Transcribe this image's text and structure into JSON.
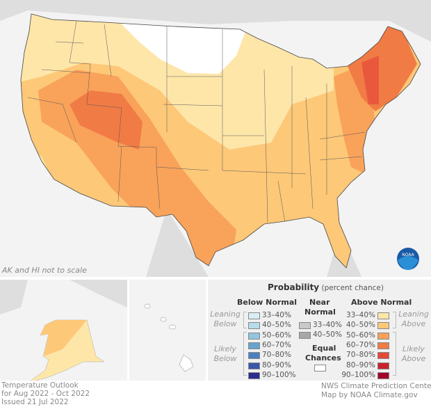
{
  "map": {
    "title": "Temperature Outlook",
    "period": "for Aug 2022 - Oct 2022",
    "issued": "Issued 21 Jul 2022",
    "scale_note": "AK and HI not to scale",
    "logo": "NOAA",
    "credit_1": "NWS Climate Prediction Center",
    "credit_2": "Map by NOAA Climate.gov"
  },
  "legend": {
    "title": "Probability",
    "title_sub": "(percent chance)",
    "below": {
      "header": "Below Normal",
      "leaning": "Leaning Below",
      "likely": "Likely Below",
      "items": [
        {
          "label": "33–40%",
          "color": "#d9eff6"
        },
        {
          "label": "40–50%",
          "color": "#b4dcea"
        },
        {
          "label": "50–60%",
          "color": "#92c5df"
        },
        {
          "label": "60–70%",
          "color": "#67a4cd"
        },
        {
          "label": "70–80%",
          "color": "#4b7fbf"
        },
        {
          "label": "80–90%",
          "color": "#3a57a6"
        },
        {
          "label": "90–100%",
          "color": "#2c2e8e"
        }
      ]
    },
    "near": {
      "header_1": "Near",
      "header_2": "Normal",
      "items": [
        {
          "label": "33–40%",
          "color": "#c9c9c9"
        },
        {
          "label": "40–50%",
          "color": "#a7a7a7"
        }
      ]
    },
    "equal": {
      "label_1": "Equal",
      "label_2": "Chances",
      "color": "#ffffff"
    },
    "above": {
      "header": "Above Normal",
      "leaning": "Leaning Above",
      "likely": "Likely Above",
      "items": [
        {
          "label": "33–40%",
          "color": "#fee6a9"
        },
        {
          "label": "40–50%",
          "color": "#fdc878"
        },
        {
          "label": "50–60%",
          "color": "#f9a25a"
        },
        {
          "label": "60–70%",
          "color": "#f17b45"
        },
        {
          "label": "70–80%",
          "color": "#e34a38"
        },
        {
          "label": "80–90%",
          "color": "#c8232a"
        },
        {
          "label": "90–100%",
          "color": "#a3002a"
        }
      ]
    }
  }
}
